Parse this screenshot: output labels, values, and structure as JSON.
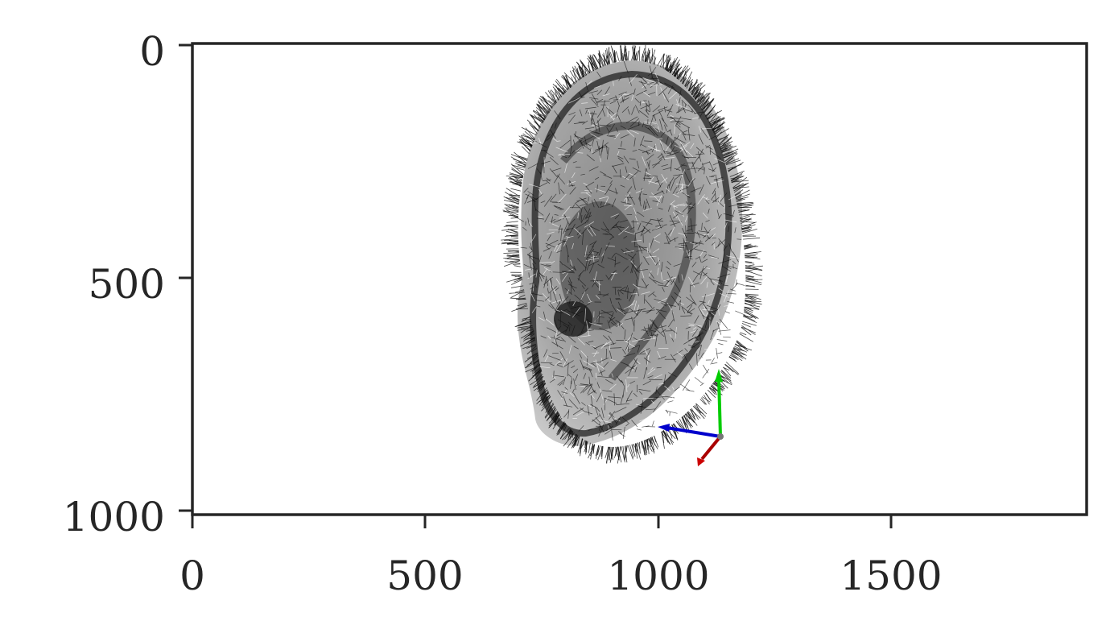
{
  "axes": {
    "x_ticks": [
      "0",
      "500",
      "1000",
      "1500"
    ],
    "y_ticks": [
      "0",
      "500",
      "1000"
    ],
    "x_range": [
      0,
      1920
    ],
    "y_range": [
      1010,
      0
    ],
    "grid": false
  },
  "image": {
    "subject": "ear",
    "style": "black hair-like strokes rendered around an ear surface on white"
  },
  "coordinate_frame": {
    "colors": {
      "x": "#00cc00",
      "y": "#0000cc",
      "z": "#aa0000"
    }
  },
  "colors": {
    "axes": "#262626",
    "background": "#ffffff",
    "strokes": "#111111"
  }
}
